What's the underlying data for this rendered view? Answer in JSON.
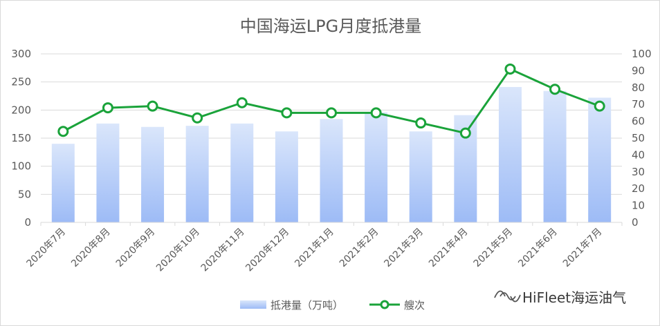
{
  "chart_data": {
    "type": "bar+line",
    "title": "中国海运LPG月度抵港量",
    "categories": [
      "2020年7月",
      "2020年8月",
      "2020年9月",
      "2020年10月",
      "2020年11月",
      "2020年12月",
      "2021年1月",
      "2021年2月",
      "2021年3月",
      "2021年4月",
      "2021年5月",
      "2021年6月",
      "2021年7月"
    ],
    "series": [
      {
        "name": "抵港量（万吨）",
        "type": "bar",
        "axis": "left",
        "values": [
          140,
          176,
          170,
          172,
          176,
          162,
          184,
          196,
          162,
          191,
          241,
          234,
          222
        ]
      },
      {
        "name": "艘次",
        "type": "line",
        "axis": "right",
        "values": [
          54,
          68,
          69,
          62,
          71,
          65,
          65,
          65,
          59,
          53,
          91,
          79,
          69
        ]
      }
    ],
    "y_left": {
      "min": 0,
      "max": 300,
      "ticks": [
        0,
        50,
        100,
        150,
        200,
        250,
        300
      ]
    },
    "y_right": {
      "min": 0,
      "max": 100,
      "ticks": [
        0,
        10,
        20,
        30,
        40,
        50,
        60,
        70,
        80,
        90,
        100
      ]
    },
    "grid": true,
    "legend_position": "bottom",
    "colors": {
      "bar_top": "#dae6fb",
      "bar_bottom": "#9dbbf6",
      "line": "#1aa33a",
      "marker_fill": "#ffffff",
      "grid": "#d9d9d9",
      "text": "#595959"
    }
  },
  "watermark": {
    "text": "HiFleet海运油气",
    "icon": "wechat-channel-icon"
  }
}
